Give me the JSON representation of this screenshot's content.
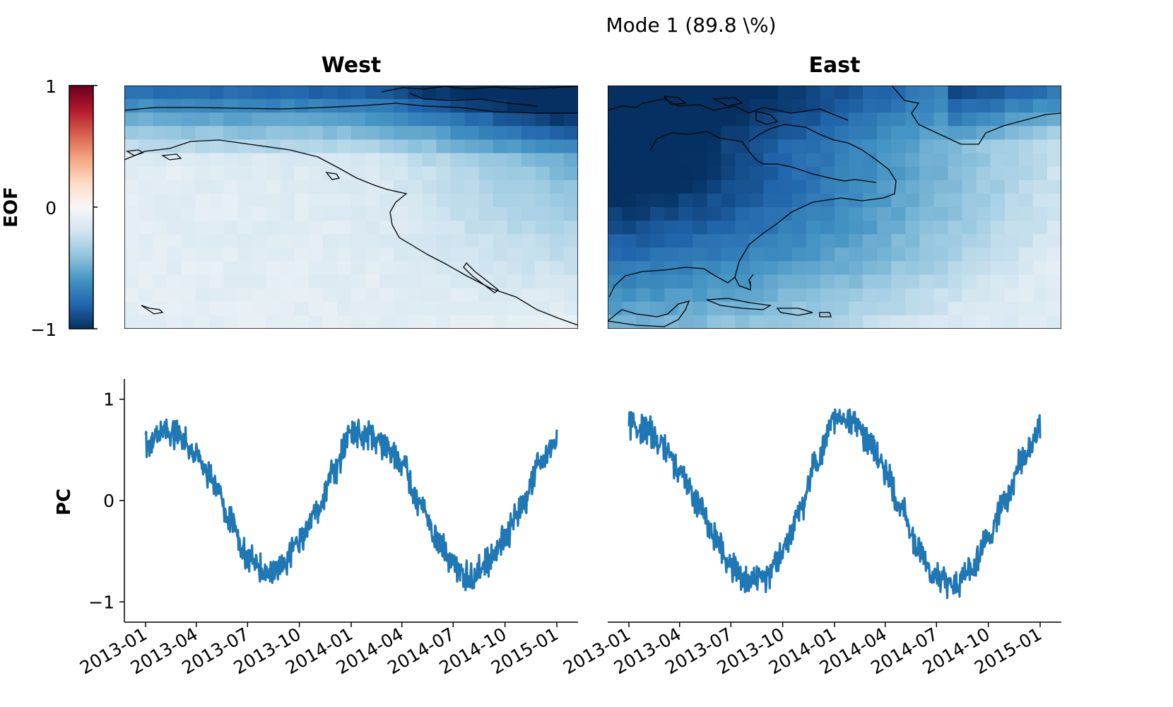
{
  "figure": {
    "suptitle": "Mode 1 (89.8 \\%)",
    "colorbar": {
      "label": "EOF",
      "ticks": [
        "1",
        "0",
        "−1"
      ],
      "colormap": "RdBu_r",
      "range": [
        -1,
        1
      ]
    }
  },
  "colors": {
    "line": "#1f77b4",
    "coastline": "#000000",
    "dark_blue": "#053061",
    "mid_blue": "#2166ac",
    "light_blue": "#92c5de",
    "pale": "#f7f7f7",
    "red": "#67001f"
  },
  "chart_data": [
    {
      "type": "heatmap",
      "title": "West",
      "description_of_field": "EOF loadings, strongly negative (deep blue) across the north and north-east, near zero (white) to the south-west",
      "colorbar_range": [
        -1,
        1
      ],
      "coastlines": true
    },
    {
      "type": "heatmap",
      "title": "East",
      "description_of_field": "EOF loadings, strongly negative over northern Canada, weakening toward the south and east Atlantic",
      "colorbar_range": [
        -1,
        1
      ],
      "coastlines": true
    },
    {
      "type": "line",
      "ylabel": "PC",
      "ylim": [
        -1.2,
        1.2
      ],
      "yticks": [
        {
          "v": 1,
          "t": "1"
        },
        {
          "v": 0,
          "t": "0"
        },
        {
          "v": -1,
          "t": "−1"
        }
      ],
      "xticks": [
        "2013-01",
        "2013-04",
        "2013-07",
        "2013-10",
        "2014-01",
        "2014-04",
        "2014-07",
        "2014-10",
        "2015-01"
      ],
      "x_range": [
        "2013-01-01",
        "2015-01-01"
      ],
      "series": [
        {
          "x": [
            "2013-01-01",
            "2013-02-01",
            "2013-03-01",
            "2013-04-01",
            "2013-05-01",
            "2013-06-01",
            "2013-07-01",
            "2013-08-01",
            "2013-09-01",
            "2013-10-01",
            "2013-11-01",
            "2013-12-01",
            "2014-01-01",
            "2014-02-01",
            "2014-03-01",
            "2014-04-01",
            "2014-05-01",
            "2014-06-01",
            "2014-07-01",
            "2014-08-01",
            "2014-09-01",
            "2014-10-01",
            "2014-11-01",
            "2014-12-01",
            "2015-01-01"
          ],
          "values": [
            0.55,
            0.7,
            0.65,
            0.45,
            0.2,
            -0.2,
            -0.55,
            -0.7,
            -0.65,
            -0.4,
            -0.1,
            0.3,
            0.65,
            0.65,
            0.55,
            0.35,
            0.0,
            -0.35,
            -0.65,
            -0.75,
            -0.6,
            -0.35,
            -0.05,
            0.35,
            0.6
          ]
        }
      ]
    },
    {
      "type": "line",
      "ylim": [
        -1.2,
        1.2
      ],
      "xticks": [
        "2013-01",
        "2013-04",
        "2013-07",
        "2013-10",
        "2014-01",
        "2014-04",
        "2014-07",
        "2014-10",
        "2015-01"
      ],
      "x_range": [
        "2013-01-01",
        "2015-01-01"
      ],
      "series": [
        {
          "x": [
            "2013-01-01",
            "2013-02-01",
            "2013-03-01",
            "2013-04-01",
            "2013-05-01",
            "2013-06-01",
            "2013-07-01",
            "2013-08-01",
            "2013-09-01",
            "2013-10-01",
            "2013-11-01",
            "2013-12-01",
            "2014-01-01",
            "2014-02-01",
            "2014-03-01",
            "2014-04-01",
            "2014-05-01",
            "2014-06-01",
            "2014-07-01",
            "2014-08-01",
            "2014-09-01",
            "2014-10-01",
            "2014-11-01",
            "2014-12-01",
            "2015-01-01"
          ],
          "values": [
            0.75,
            0.7,
            0.55,
            0.3,
            0.0,
            -0.35,
            -0.65,
            -0.8,
            -0.75,
            -0.5,
            -0.1,
            0.4,
            0.8,
            0.8,
            0.6,
            0.3,
            -0.1,
            -0.5,
            -0.75,
            -0.85,
            -0.65,
            -0.35,
            0.0,
            0.4,
            0.7
          ]
        }
      ]
    }
  ]
}
